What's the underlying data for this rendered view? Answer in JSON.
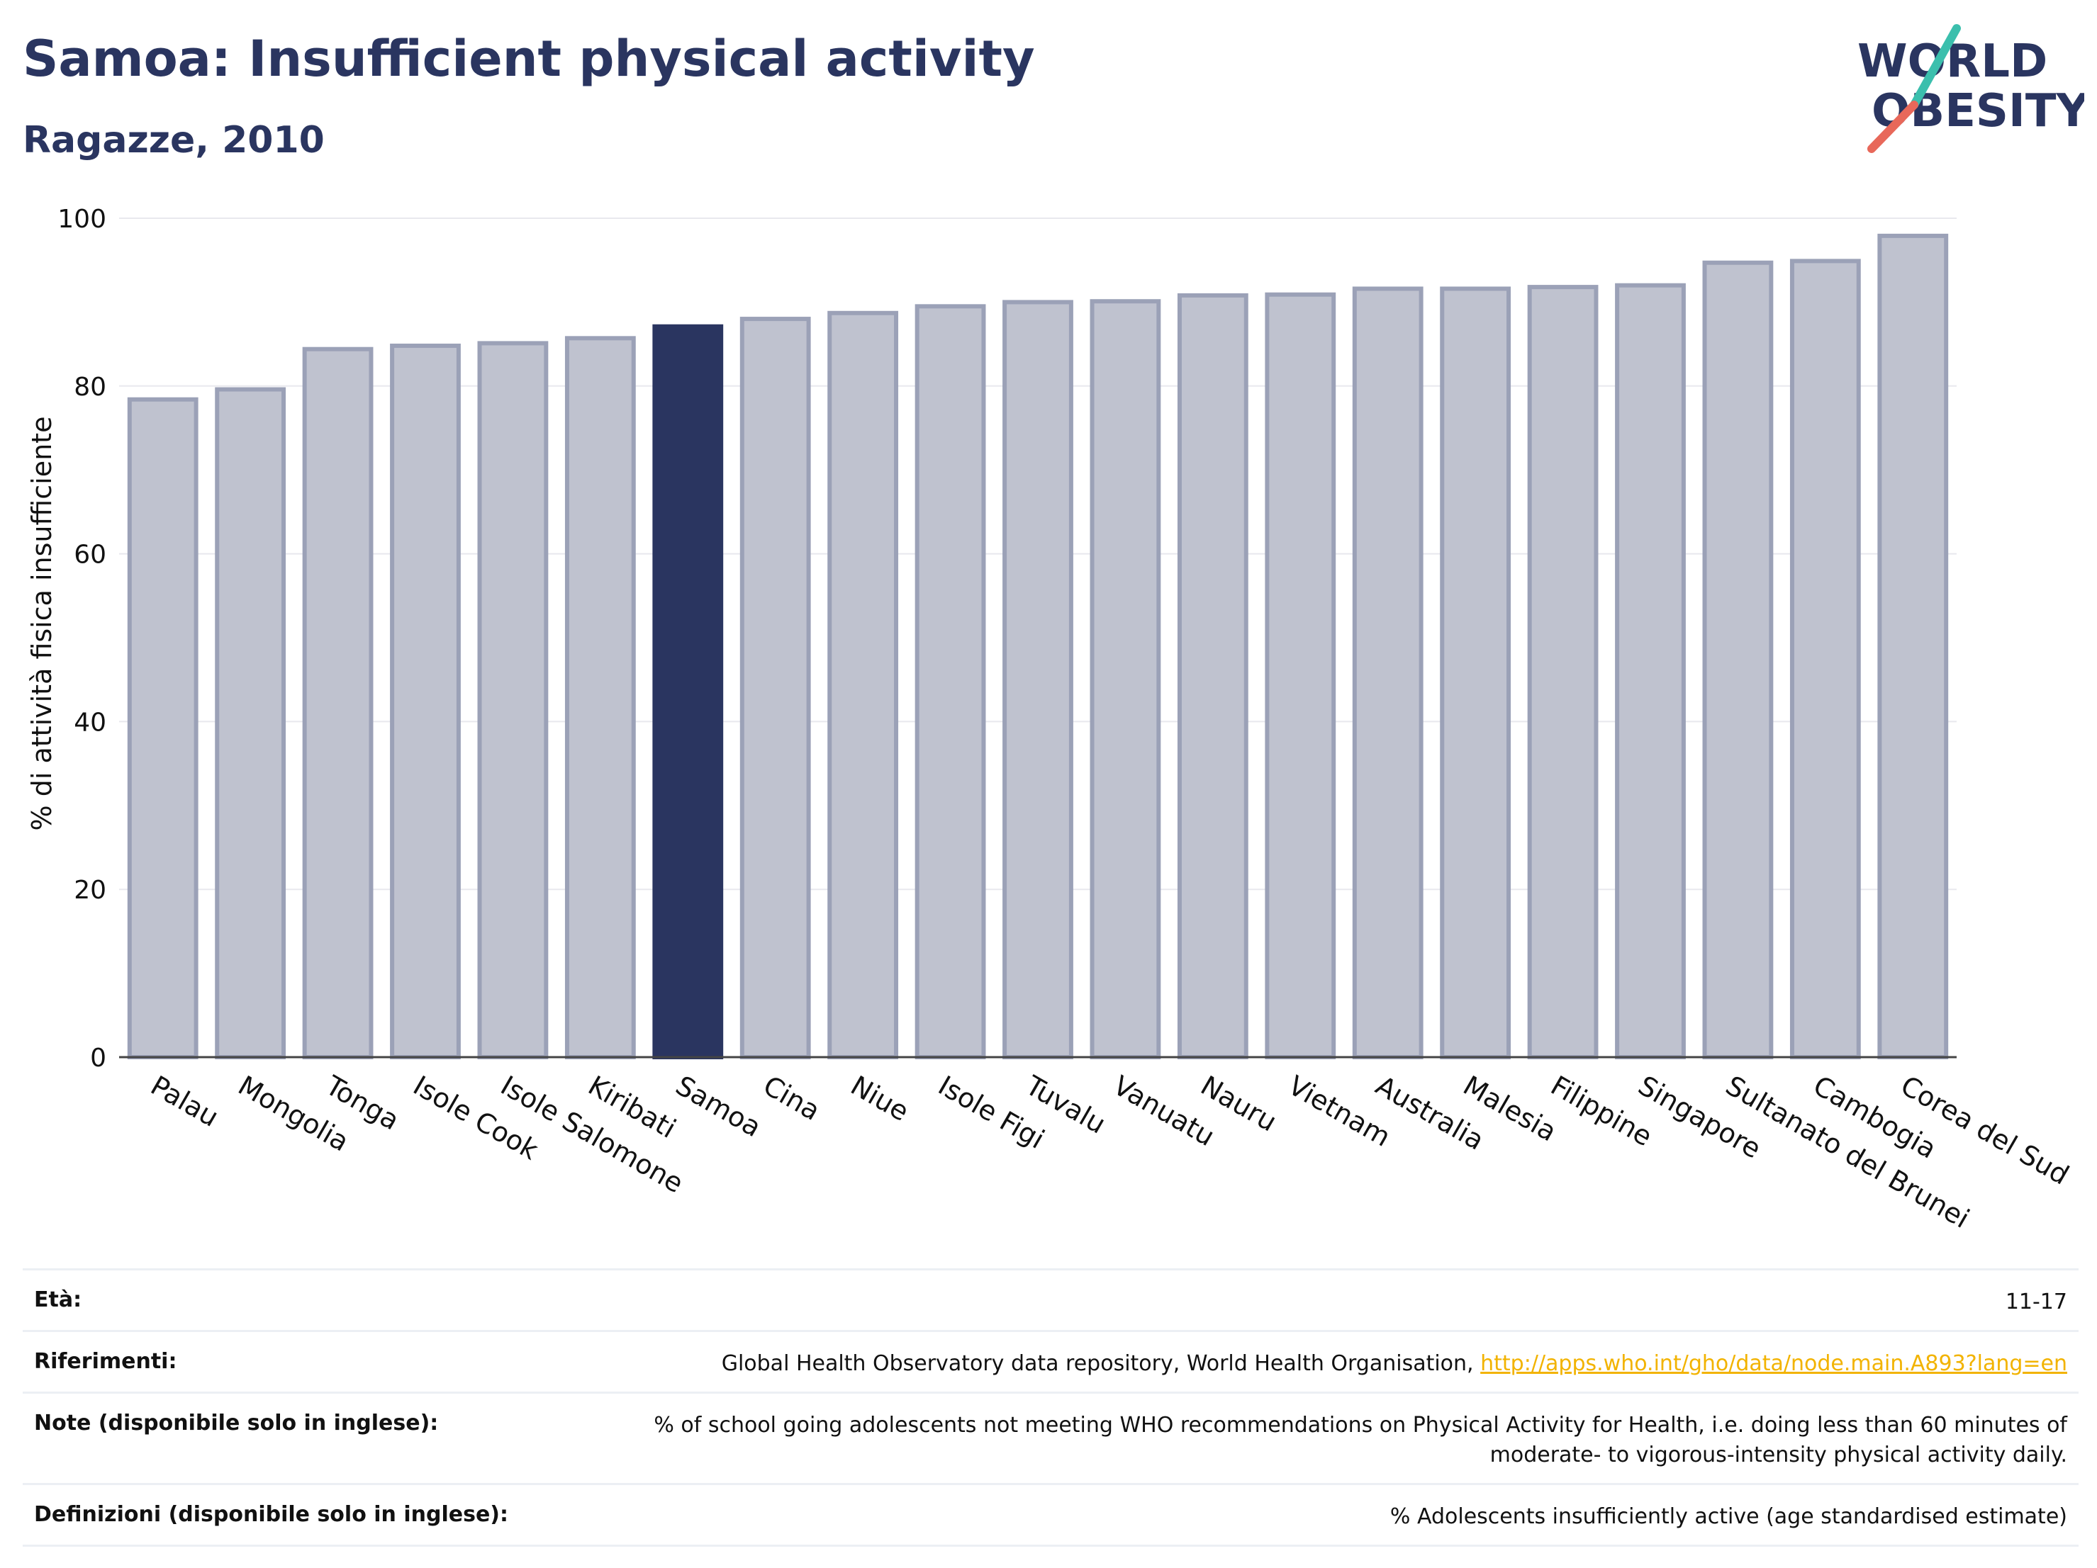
{
  "header": {
    "title": "Samoa: Insufficient physical activity",
    "subtitle": "Ragazze, 2010"
  },
  "logo": {
    "line1": "WORLD",
    "line2": "OBESITY"
  },
  "colors": {
    "highlight": "#2a3560",
    "bar_fill": "#bfc2cf",
    "bar_stroke": "#9ba1b7",
    "grid": "#e8e8ee",
    "logo_teal": "#3bbfad",
    "logo_coral": "#e8685a"
  },
  "chart_data": {
    "type": "bar",
    "ylabel": "% di attività fisica insufficiente",
    "ylim": [
      0,
      100
    ],
    "yticks": [
      0,
      20,
      40,
      60,
      80,
      100
    ],
    "grid": true,
    "highlight": "Samoa",
    "categories": [
      "Palau",
      "Mongolia",
      "Tonga",
      "Isole Cook",
      "Isole Salomone",
      "Kiribati",
      "Samoa",
      "Cina",
      "Niue",
      "Isole Figi",
      "Tuvalu",
      "Vanuatu",
      "Nauru",
      "Vietnam",
      "Australia",
      "Malesia",
      "Filippine",
      "Singapore",
      "Sultanato del Brunei",
      "Cambogia",
      "Corea del Sud"
    ],
    "values": [
      78.4,
      79.6,
      84.4,
      84.8,
      85.1,
      85.7,
      87.1,
      88.0,
      88.7,
      89.5,
      90.0,
      90.1,
      90.8,
      90.9,
      91.6,
      91.6,
      91.8,
      92.0,
      94.7,
      94.9,
      97.9
    ]
  },
  "table": {
    "age_label": "Età:",
    "age_value": "11-17",
    "refs_label": "Riferimenti:",
    "refs_text": "Global Health Observatory data repository, World Health Organisation,",
    "refs_link": "http://apps.who.int/gho/data/node.main.A893?lang=en",
    "notes_label": "Note (disponibile solo in inglese):",
    "notes_text": "% of school going adolescents not meeting WHO recommendations on Physical Activity for Health, i.e. doing less than 60 minutes of moderate- to vigorous-intensity physical activity daily.",
    "defs_label": "Definizioni (disponibile solo in inglese):",
    "defs_text": "% Adolescents insufficiently active (age standardised estimate)"
  }
}
